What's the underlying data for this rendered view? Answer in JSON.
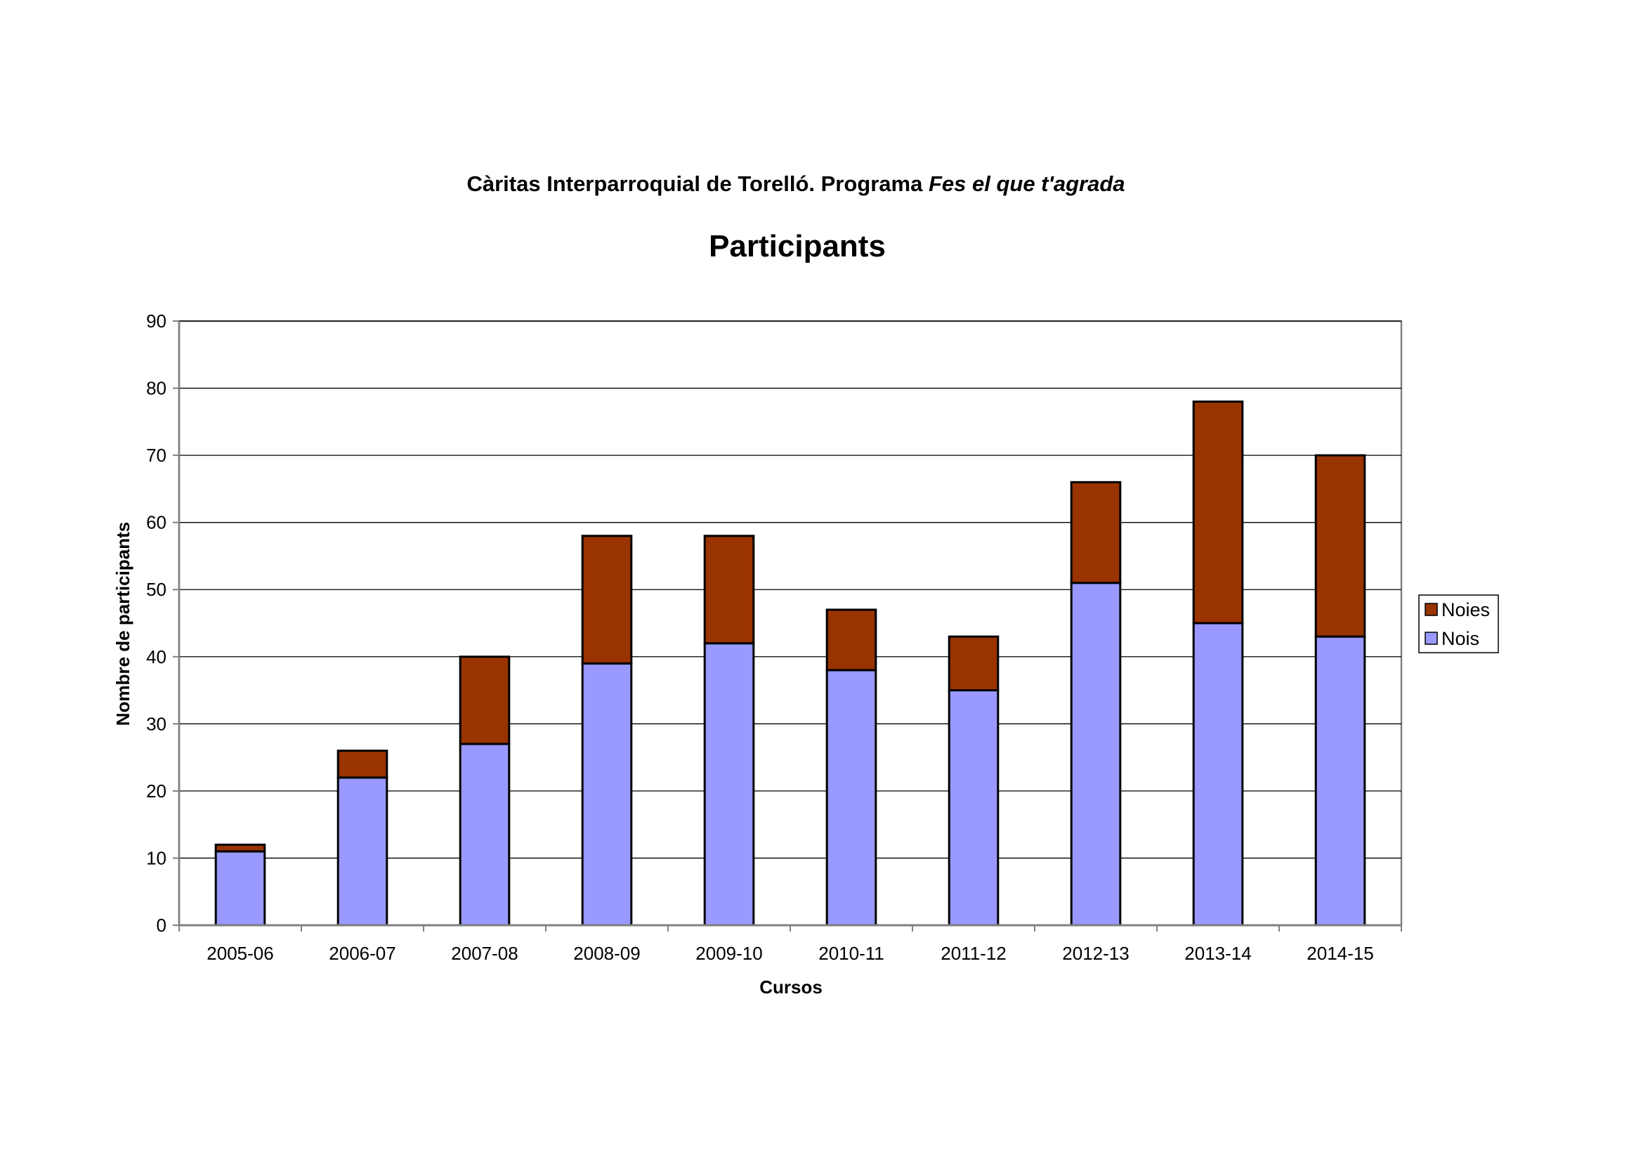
{
  "chart_data": {
    "type": "bar",
    "stacked": true,
    "title_prefix": "Càritas Interparroquial de Torelló. Programa ",
    "title_italic": "Fes el que t'agrada",
    "subtitle": "Participants",
    "xlabel": "Cursos",
    "ylabel": "Nombre de participants",
    "ylim": [
      0,
      90
    ],
    "yticks": [
      0,
      10,
      20,
      30,
      40,
      50,
      60,
      70,
      80,
      90
    ],
    "grid": true,
    "legend_position": "right",
    "categories": [
      "2005-06",
      "2006-07",
      "2007-08",
      "2008-09",
      "2009-10",
      "2010-11",
      "2011-12",
      "2012-13",
      "2013-14",
      "2014-15"
    ],
    "series": [
      {
        "name": "Nois",
        "color": "#9999FF",
        "values": [
          11,
          22,
          27,
          39,
          42,
          38,
          35,
          51,
          45,
          43
        ]
      },
      {
        "name": "Noies",
        "color": "#993300",
        "values": [
          1,
          4,
          13,
          19,
          16,
          9,
          8,
          15,
          33,
          27
        ]
      }
    ]
  }
}
